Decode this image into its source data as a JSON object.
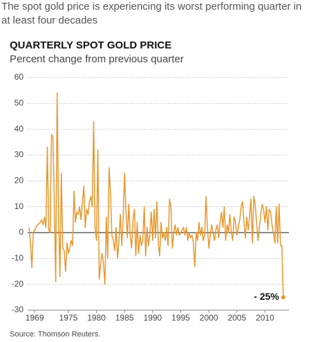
{
  "header": "The spot gold price is experiencing its worst performing quarter in at least four decades",
  "chart_data": {
    "type": "line",
    "title": "QUARTERLY SPOT GOLD PRICE",
    "subtitle": "Percent change from previous quarter",
    "source": "Source: Thomson Reuters.",
    "annotation": "- 25%",
    "color": "#e8952b",
    "grid": true,
    "ylim": [
      -30,
      60
    ],
    "yticks": [
      -30,
      -20,
      -10,
      0,
      10,
      20,
      30,
      40,
      50,
      60
    ],
    "xlim": [
      1967.75,
      2014.25
    ],
    "xticks": [
      1969,
      1975,
      1980,
      1985,
      1990,
      1995,
      2000,
      2005,
      2010
    ],
    "x": [
      1968,
      1968.25,
      1968.5,
      1968.75,
      1969,
      1969.25,
      1969.5,
      1969.75,
      1970,
      1970.25,
      1970.5,
      1970.75,
      1971,
      1971.25,
      1971.5,
      1971.75,
      1972,
      1972.25,
      1972.5,
      1972.75,
      1973,
      1973.25,
      1973.5,
      1973.75,
      1974,
      1974.25,
      1974.5,
      1974.75,
      1975,
      1975.25,
      1975.5,
      1975.75,
      1976,
      1976.25,
      1976.5,
      1976.75,
      1977,
      1977.25,
      1977.5,
      1977.75,
      1978,
      1978.25,
      1978.5,
      1978.75,
      1979,
      1979.25,
      1979.5,
      1979.75,
      1980,
      1980.25,
      1980.5,
      1980.75,
      1981,
      1981.25,
      1981.5,
      1981.75,
      1982,
      1982.25,
      1982.5,
      1982.75,
      1983,
      1983.25,
      1983.5,
      1983.75,
      1984,
      1984.25,
      1984.5,
      1984.75,
      1985,
      1985.25,
      1985.5,
      1985.75,
      1986,
      1986.25,
      1986.5,
      1986.75,
      1987,
      1987.25,
      1987.5,
      1987.75,
      1988,
      1988.25,
      1988.5,
      1988.75,
      1989,
      1989.25,
      1989.5,
      1989.75,
      1990,
      1990.25,
      1990.5,
      1990.75,
      1991,
      1991.25,
      1991.5,
      1991.75,
      1992,
      1992.25,
      1992.5,
      1992.75,
      1993,
      1993.25,
      1993.5,
      1993.75,
      1994,
      1994.25,
      1994.5,
      1994.75,
      1995,
      1995.25,
      1995.5,
      1995.75,
      1996,
      1996.25,
      1996.5,
      1996.75,
      1997,
      1997.25,
      1997.5,
      1997.75,
      1998,
      1998.25,
      1998.5,
      1998.75,
      1999,
      1999.25,
      1999.5,
      1999.75,
      2000,
      2000.25,
      2000.5,
      2000.75,
      2001,
      2001.25,
      2001.5,
      2001.75,
      2002,
      2002.25,
      2002.5,
      2002.75,
      2003,
      2003.25,
      2003.5,
      2003.75,
      2004,
      2004.25,
      2004.5,
      2004.75,
      2005,
      2005.25,
      2005.5,
      2005.75,
      2006,
      2006.25,
      2006.5,
      2006.75,
      2007,
      2007.25,
      2007.5,
      2007.75,
      2008,
      2008.25,
      2008.5,
      2008.75,
      2009,
      2009.25,
      2009.5,
      2009.75,
      2010,
      2010.25,
      2010.5,
      2010.75,
      2011,
      2011.25,
      2011.5,
      2011.75,
      2012,
      2012.25,
      2012.5,
      2012.75,
      2013,
      2013.25
    ],
    "values": [
      2,
      -4,
      -13.5,
      0,
      1,
      2,
      3,
      3.5,
      4,
      5,
      3,
      6,
      2,
      33,
      1,
      0,
      38,
      37,
      12,
      -19,
      54,
      8,
      -17,
      23,
      -6,
      -7,
      -15,
      -4,
      -8,
      -6,
      -3,
      -5,
      16,
      4,
      8,
      7,
      10,
      5,
      12,
      18,
      2,
      9,
      7,
      12,
      14,
      10,
      43,
      2,
      -3,
      32,
      -18,
      -12,
      -8,
      -12,
      -20,
      6,
      -10,
      25,
      15,
      -1,
      -3,
      -7,
      2,
      -10,
      -3,
      7,
      -5,
      5,
      23,
      8,
      -2,
      11,
      -1,
      -6,
      5,
      9,
      -9,
      4,
      -8,
      -1,
      -5,
      -3,
      10,
      -9,
      2,
      -5,
      -1,
      8,
      -3,
      9,
      -2,
      12,
      -4,
      -9,
      4,
      -2,
      0,
      -3,
      2,
      -5,
      13,
      10,
      -6,
      0,
      3,
      -1,
      2,
      -1,
      0,
      1,
      2,
      -1,
      2,
      -3,
      0,
      -2,
      -1,
      -4,
      -13,
      0,
      -3,
      4,
      -1,
      2,
      -3,
      -1,
      14,
      2,
      -6,
      -1,
      3,
      0,
      -3,
      1,
      3,
      -2,
      4,
      8,
      2,
      10,
      -3,
      3,
      0,
      7,
      0,
      -3,
      6,
      4,
      -1,
      2,
      5,
      10,
      12,
      4,
      -2,
      6,
      1,
      6,
      13,
      -4,
      14,
      11,
      4,
      -3,
      2,
      7,
      11,
      9,
      4,
      10,
      1,
      9,
      8,
      3,
      0,
      -4,
      10,
      -4,
      11,
      -5,
      -5,
      -25
    ]
  }
}
